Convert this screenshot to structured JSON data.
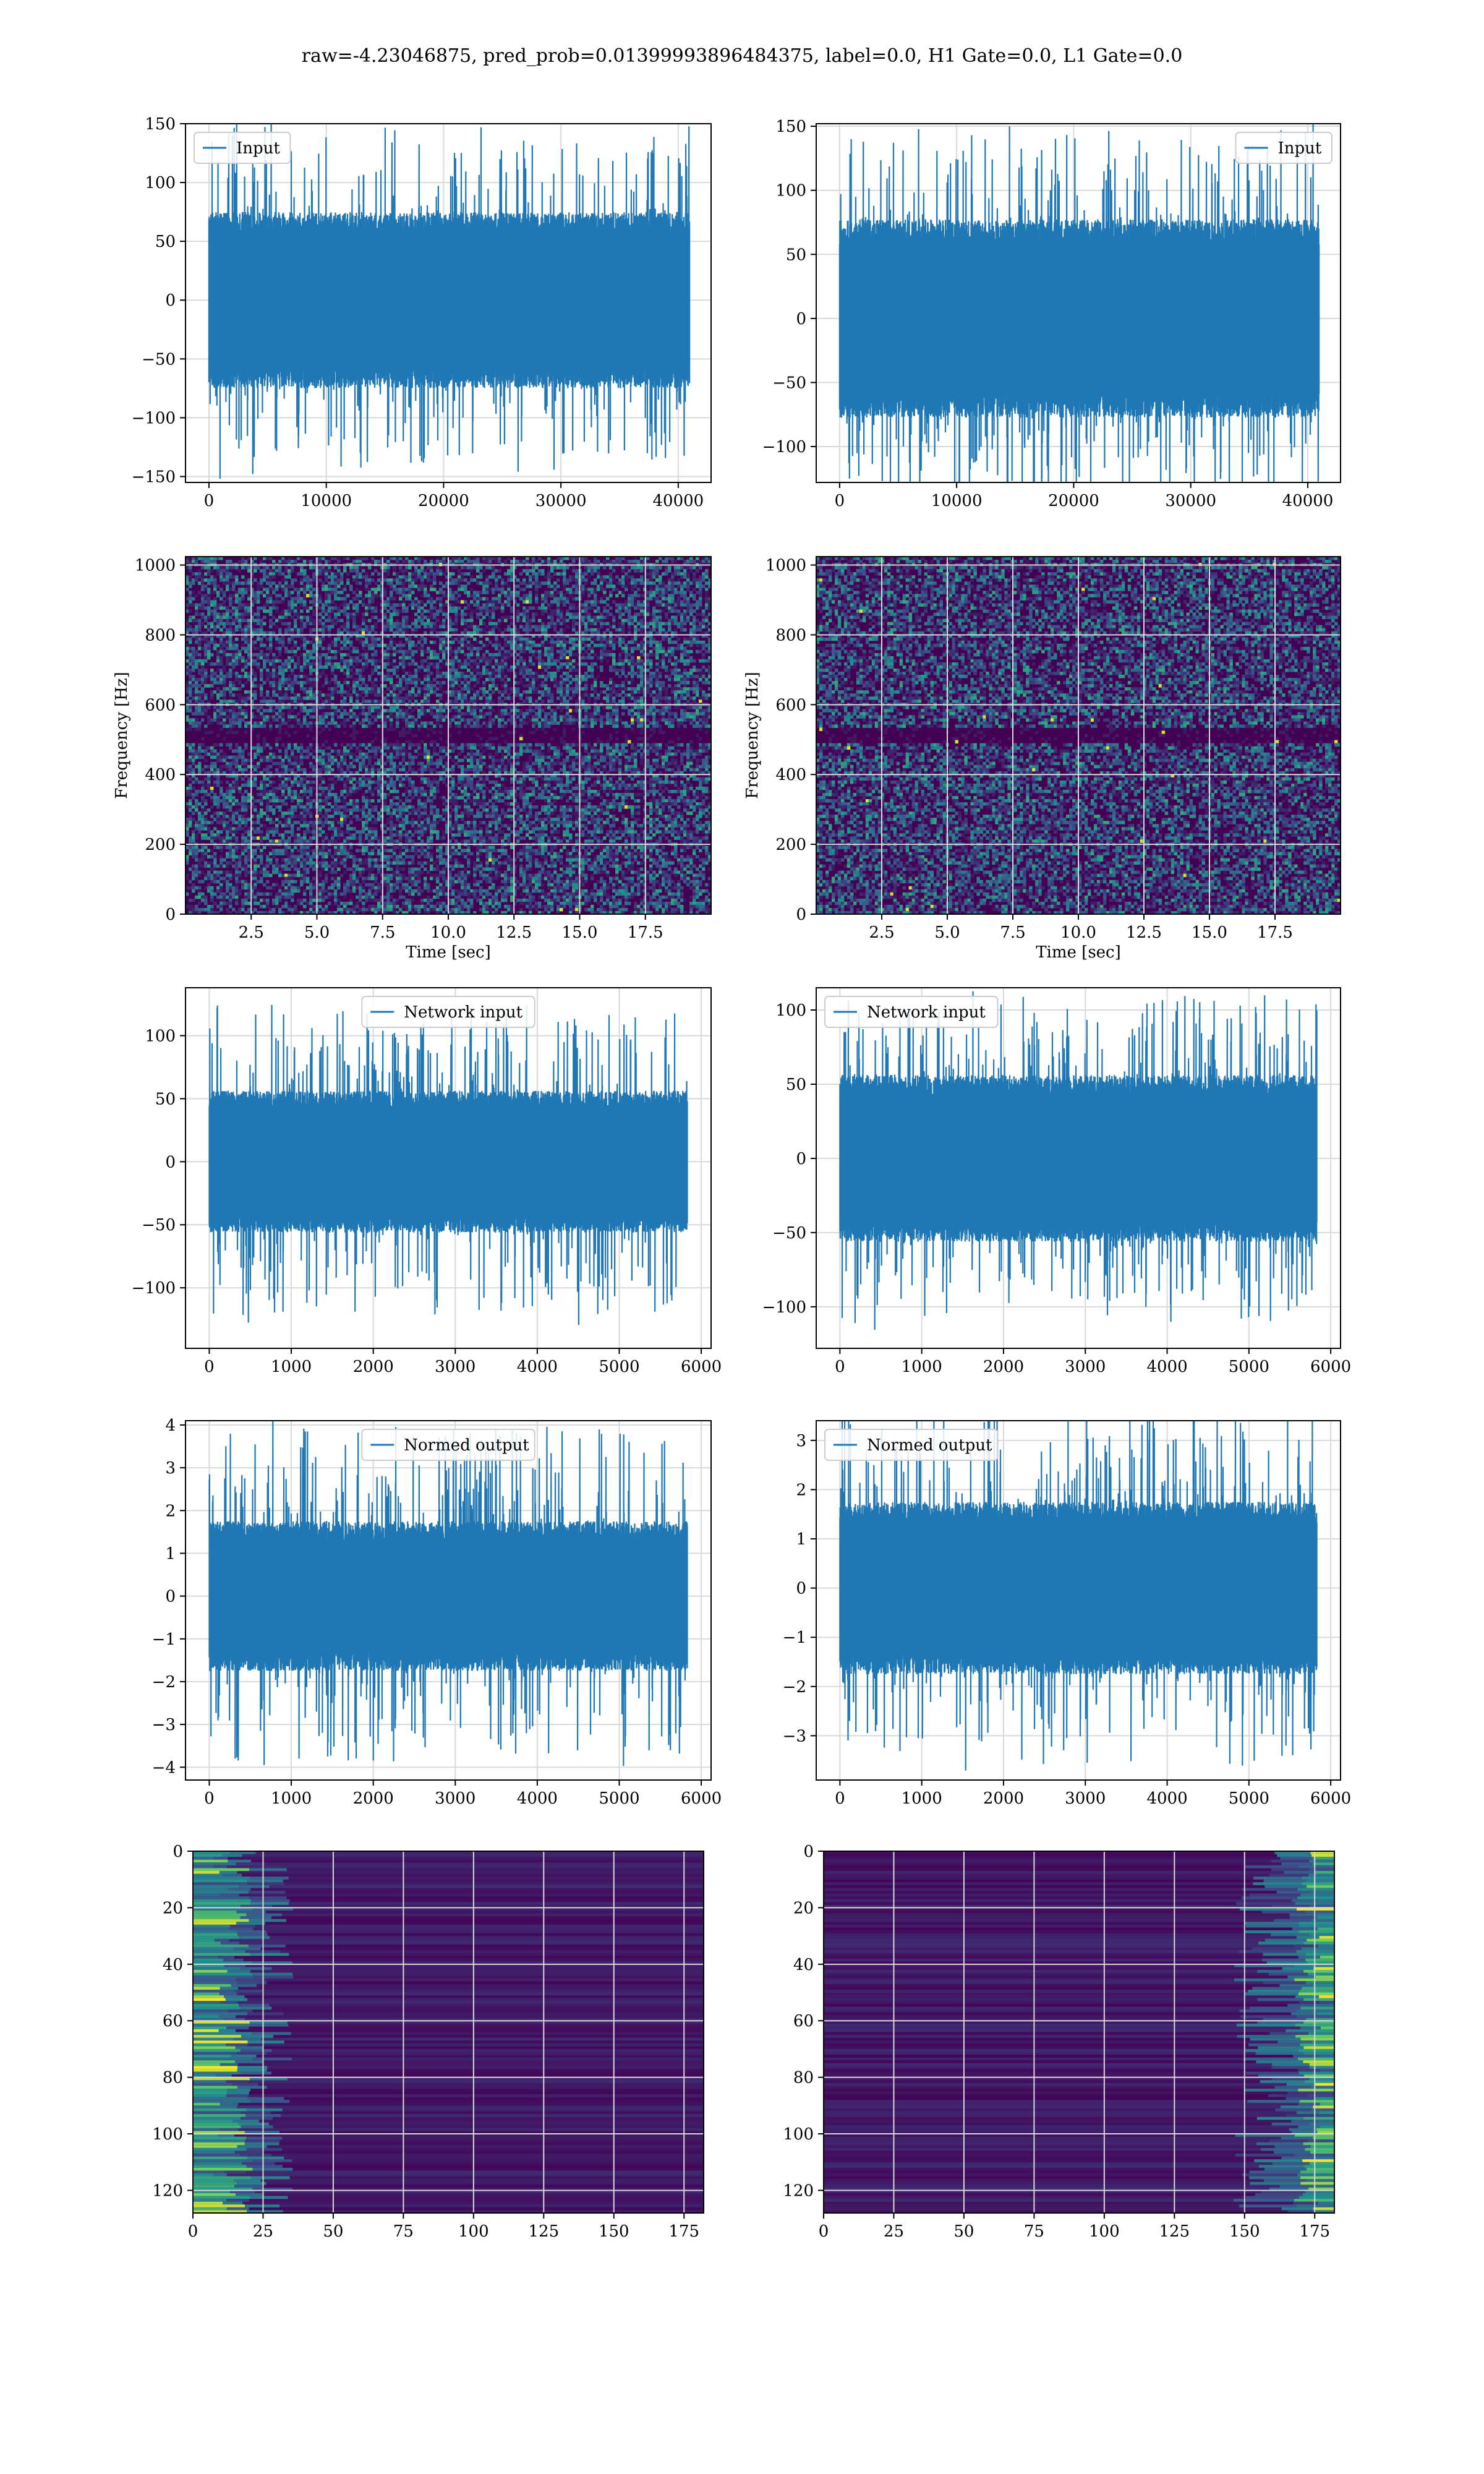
{
  "figure": {
    "suptitle": "raw=-4.23046875, pred_prob=0.01399993896484375, label=0.0, H1 Gate=0.0, L1 Gate=0.0"
  },
  "colors": {
    "line": "#1f77b4",
    "grid": "#d9d9d9",
    "heat_low": "#440154",
    "heat_mid": "#21918c",
    "heat_high": "#fde725"
  },
  "chart_data": [
    {
      "id": "h1-input",
      "type": "line",
      "legend": "Input",
      "legend_loc": "upper left",
      "xlim": [
        -2000,
        42800
      ],
      "ylim": [
        -155,
        150
      ],
      "xticks": [
        0,
        10000,
        20000,
        30000,
        40000
      ],
      "yticks": [
        -150,
        -100,
        -50,
        0,
        50,
        100,
        150
      ],
      "series": [
        {
          "name": "Input",
          "x_range": [
            0,
            40960
          ],
          "core_amplitude": 60,
          "peak_amplitude": 140
        }
      ],
      "grid": true
    },
    {
      "id": "l1-input",
      "type": "line",
      "legend": "Input",
      "legend_loc": "upper right",
      "xlim": [
        -2000,
        42800
      ],
      "ylim": [
        -128,
        152
      ],
      "xticks": [
        0,
        10000,
        20000,
        30000,
        40000
      ],
      "yticks": [
        -100,
        -50,
        0,
        50,
        100,
        150
      ],
      "series": [
        {
          "name": "Input",
          "x_range": [
            0,
            40960
          ],
          "core_amplitude": 62,
          "peak_amplitude": 140
        }
      ],
      "grid": true
    },
    {
      "id": "h1-spectrogram",
      "type": "heatmap",
      "xlabel": "Time [sec]",
      "ylabel": "Frequency [Hz]",
      "xlim": [
        0,
        20
      ],
      "ylim": [
        0,
        1024
      ],
      "xticks": [
        2.5,
        5.0,
        7.5,
        10.0,
        12.5,
        15.0,
        17.5
      ],
      "yticks": [
        0,
        200,
        400,
        600,
        800,
        1000
      ],
      "quiet_band_hz": [
        490,
        530
      ],
      "grid": true
    },
    {
      "id": "l1-spectrogram",
      "type": "heatmap",
      "xlabel": "Time [sec]",
      "ylabel": "Frequency [Hz]",
      "xlim": [
        0,
        20
      ],
      "ylim": [
        0,
        1024
      ],
      "xticks": [
        2.5,
        5.0,
        7.5,
        10.0,
        12.5,
        15.0,
        17.5
      ],
      "yticks": [
        0,
        200,
        400,
        600,
        800,
        1000
      ],
      "quiet_band_hz": [
        490,
        530
      ],
      "grid": true
    },
    {
      "id": "h1-network-input",
      "type": "line",
      "legend": "Network input",
      "legend_loc": "upper center",
      "xlim": [
        -290,
        6120
      ],
      "ylim": [
        -148,
        138
      ],
      "xticks": [
        0,
        1000,
        2000,
        3000,
        4000,
        5000,
        6000
      ],
      "yticks": [
        -100,
        -50,
        0,
        50,
        100
      ],
      "series": [
        {
          "name": "Network input",
          "x_range": [
            0,
            5830
          ],
          "core_amplitude": 45,
          "peak_amplitude": 120
        }
      ],
      "grid": true
    },
    {
      "id": "l1-network-input",
      "type": "line",
      "legend": "Network input",
      "legend_loc": "upper left",
      "xlim": [
        -290,
        6120
      ],
      "ylim": [
        -128,
        115
      ],
      "xticks": [
        0,
        1000,
        2000,
        3000,
        4000,
        5000,
        6000
      ],
      "yticks": [
        -100,
        -50,
        0,
        50,
        100
      ],
      "series": [
        {
          "name": "Network input",
          "x_range": [
            0,
            5830
          ],
          "core_amplitude": 45,
          "peak_amplitude": 105
        }
      ],
      "grid": true
    },
    {
      "id": "h1-normed-output",
      "type": "line",
      "legend": "Normed output",
      "legend_loc": "upper center",
      "xlim": [
        -290,
        6120
      ],
      "ylim": [
        -4.3,
        4.1
      ],
      "xticks": [
        0,
        1000,
        2000,
        3000,
        4000,
        5000,
        6000
      ],
      "yticks": [
        -4,
        -3,
        -2,
        -1,
        0,
        1,
        2,
        3,
        4
      ],
      "series": [
        {
          "name": "Normed output",
          "x_range": [
            0,
            5830
          ],
          "core_amplitude": 1.4,
          "peak_amplitude": 3.9
        }
      ],
      "grid": true
    },
    {
      "id": "l1-normed-output",
      "type": "line",
      "legend": "Normed output",
      "legend_loc": "upper left",
      "xlim": [
        -290,
        6120
      ],
      "ylim": [
        -3.9,
        3.4
      ],
      "xticks": [
        0,
        1000,
        2000,
        3000,
        4000,
        5000,
        6000
      ],
      "yticks": [
        -3,
        -2,
        -1,
        0,
        1,
        2,
        3
      ],
      "series": [
        {
          "name": "Normed output",
          "x_range": [
            0,
            5830
          ],
          "core_amplitude": 1.4,
          "peak_amplitude": 3.5
        }
      ],
      "grid": true
    },
    {
      "id": "h1-feature-map",
      "type": "heatmap",
      "xlim": [
        0,
        182
      ],
      "ylim": [
        0,
        128
      ],
      "y_inverted": true,
      "xticks": [
        0,
        25,
        50,
        75,
        100,
        125,
        150,
        175
      ],
      "yticks": [
        0,
        20,
        40,
        60,
        80,
        100,
        120
      ],
      "hot_side": "left",
      "grid": true
    },
    {
      "id": "l1-feature-map",
      "type": "heatmap",
      "xlim": [
        0,
        182
      ],
      "ylim": [
        0,
        128
      ],
      "y_inverted": true,
      "xticks": [
        0,
        25,
        50,
        75,
        100,
        125,
        150,
        175
      ],
      "yticks": [
        0,
        20,
        40,
        60,
        80,
        100,
        120
      ],
      "hot_side": "right",
      "grid": true
    }
  ]
}
